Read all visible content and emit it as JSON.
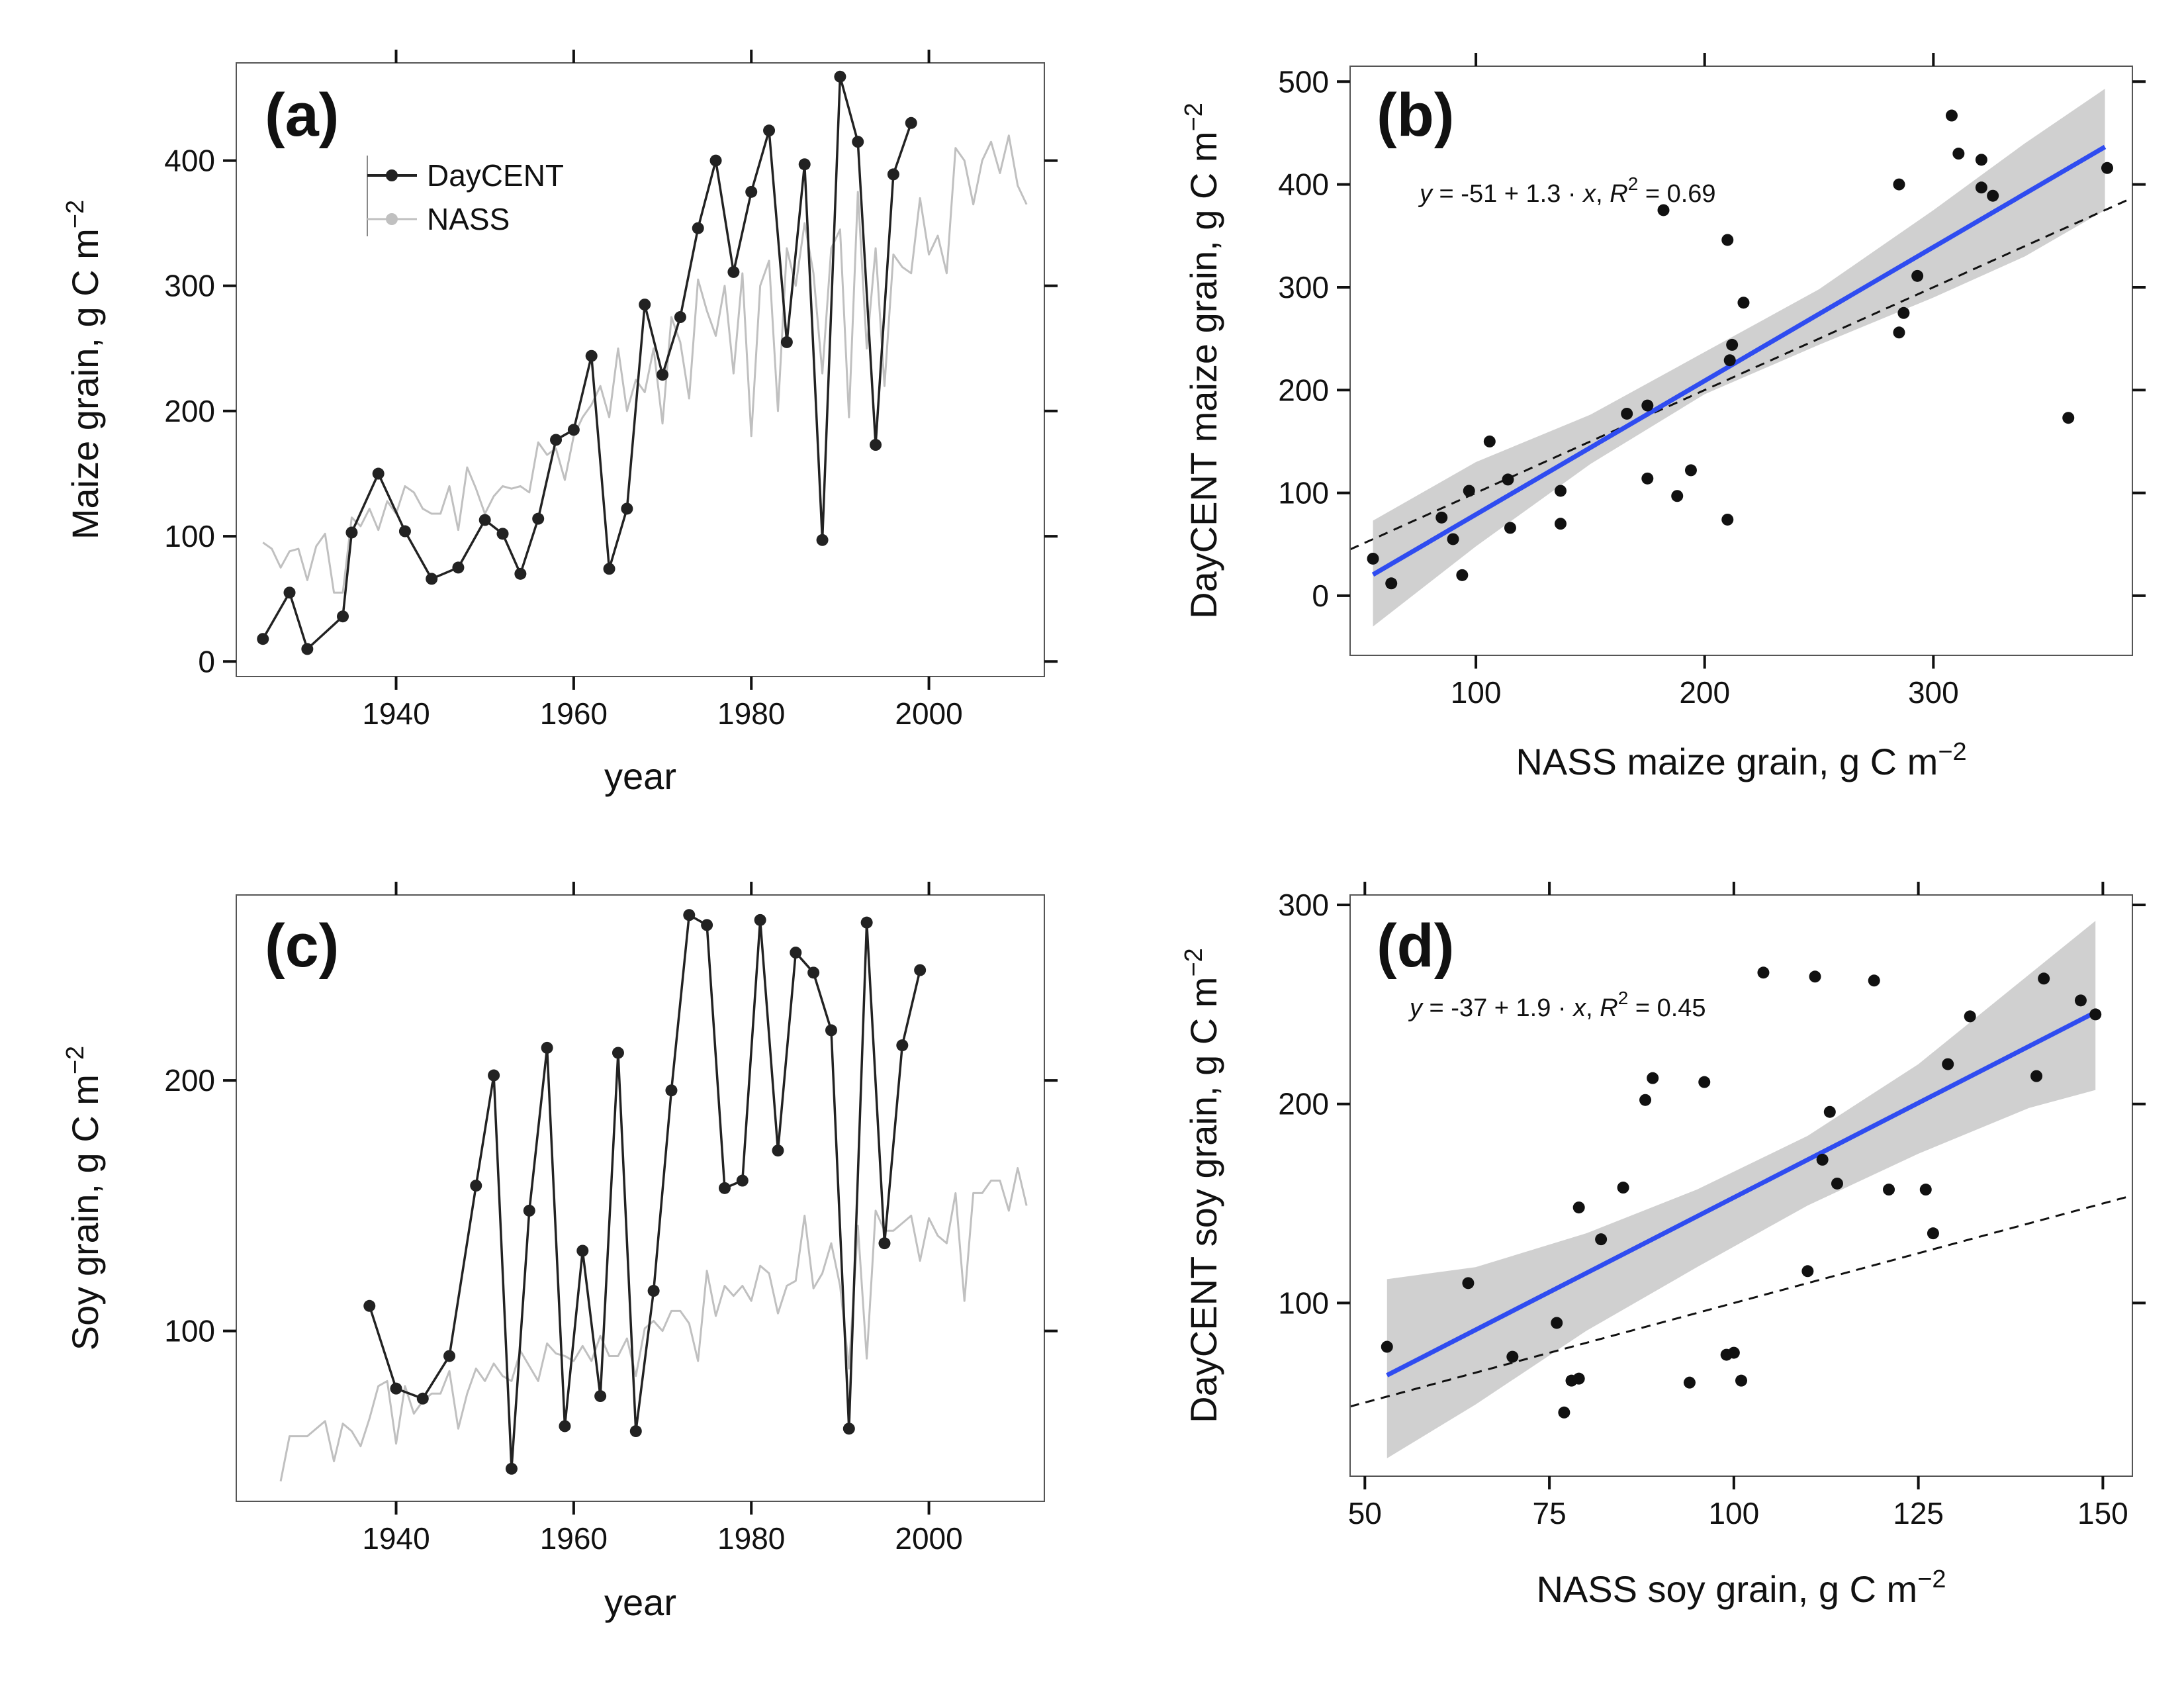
{
  "chart_data": [
    {
      "id": "a",
      "type": "line",
      "panel_label": "(a)",
      "xlabel": "year",
      "ylabel": "Maize grain, g C m",
      "ylabel_sup": "−2",
      "xlim": [
        1922,
        2013
      ],
      "ylim": [
        -12,
        478
      ],
      "xticks": [
        1940,
        1960,
        1980,
        2000
      ],
      "yticks": [
        0,
        100,
        200,
        300,
        400
      ],
      "legend": {
        "position": "top-left",
        "entries": [
          "DayCENT",
          "NASS"
        ]
      },
      "series": [
        {
          "name": "DayCENT",
          "color": "#222222",
          "markers": true,
          "x": [
            1925,
            1928,
            1930,
            1934,
            1935,
            1938,
            1941,
            1944,
            1947,
            1950,
            1952,
            1954,
            1956,
            1958,
            1960,
            1962,
            1964,
            1966,
            1968,
            1970,
            1972,
            1974,
            1976,
            1978,
            1980,
            1982,
            1984,
            1986,
            1988,
            1990,
            1992,
            1994,
            1996,
            1998
          ],
          "y": [
            18,
            55,
            10,
            36,
            103,
            150,
            104,
            66,
            75,
            113,
            102,
            70,
            114,
            177,
            185,
            244,
            74,
            122,
            285,
            229,
            275,
            346,
            400,
            311,
            375,
            424,
            255,
            397,
            97,
            467,
            415,
            173,
            389,
            430
          ]
        },
        {
          "name": "NASS",
          "color": "#c0c0c0",
          "markers": false,
          "x": [
            1925,
            1926,
            1927,
            1928,
            1929,
            1930,
            1931,
            1932,
            1933,
            1934,
            1935,
            1936,
            1937,
            1938,
            1939,
            1940,
            1941,
            1942,
            1943,
            1944,
            1945,
            1946,
            1947,
            1948,
            1949,
            1950,
            1951,
            1952,
            1953,
            1954,
            1955,
            1956,
            1957,
            1958,
            1959,
            1960,
            1961,
            1962,
            1963,
            1964,
            1965,
            1966,
            1967,
            1968,
            1969,
            1970,
            1971,
            1972,
            1973,
            1974,
            1975,
            1976,
            1977,
            1978,
            1979,
            1980,
            1981,
            1982,
            1983,
            1984,
            1985,
            1986,
            1987,
            1988,
            1989,
            1990,
            1991,
            1992,
            1993,
            1994,
            1995,
            1996,
            1997,
            1998,
            1999,
            2000,
            2001,
            2002,
            2003,
            2004,
            2005,
            2006,
            2007,
            2008,
            2009,
            2010,
            2011
          ],
          "y": [
            95,
            90,
            75,
            88,
            90,
            65,
            92,
            102,
            55,
            55,
            115,
            108,
            122,
            105,
            128,
            118,
            140,
            135,
            122,
            118,
            118,
            140,
            105,
            155,
            138,
            118,
            132,
            140,
            138,
            140,
            135,
            175,
            165,
            170,
            145,
            180,
            195,
            205,
            220,
            195,
            250,
            200,
            225,
            215,
            250,
            190,
            275,
            255,
            210,
            305,
            280,
            260,
            300,
            230,
            310,
            180,
            300,
            320,
            200,
            330,
            300,
            350,
            310,
            230,
            330,
            345,
            195,
            375,
            250,
            330,
            220,
            325,
            315,
            310,
            370,
            325,
            340,
            310,
            410,
            400,
            365,
            400,
            415,
            390,
            420,
            380,
            365
          ]
        }
      ]
    },
    {
      "id": "b",
      "type": "scatter",
      "panel_label": "(b)",
      "xlabel": "NASS maize grain, g C m",
      "xlabel_sup": "−2",
      "ylabel": "DayCENT maize grain, g C m",
      "ylabel_sup": "−2",
      "xlim": [
        45,
        387
      ],
      "ylim": [
        -58,
        515
      ],
      "xticks": [
        100,
        200,
        300
      ],
      "yticks": [
        0,
        100,
        200,
        300,
        400,
        500
      ],
      "annotation": {
        "text_y": "y",
        "text_mid": " = -51 + 1.3 · ",
        "text_x": "x",
        "text_r": ",  R",
        "text_sup": "2",
        "text_val": " = 0.69"
      },
      "fit": {
        "intercept": -51,
        "slope": 1.3,
        "x_range": [
          55,
          375
        ],
        "color": "#2f4cf0"
      },
      "confidence_band": {
        "x": [
          55,
          100,
          150,
          200,
          250,
          300,
          340,
          375
        ],
        "lower": [
          -30,
          48,
          128,
          196,
          244,
          290,
          330,
          375
        ],
        "upper": [
          73,
          130,
          176,
          237,
          298,
          375,
          440,
          493
        ],
        "color": "#d0d0d0"
      },
      "reference_line": {
        "intercept": 0,
        "slope": 1,
        "style": "dashed"
      },
      "points": {
        "x": [
          55,
          63,
          85,
          90,
          94,
          97,
          106,
          114,
          115,
          137,
          137,
          166,
          175,
          175,
          182,
          188,
          194,
          210,
          210,
          211,
          212,
          217,
          285,
          285,
          287,
          293,
          308,
          311,
          321,
          321,
          326,
          359,
          376
        ],
        "y": [
          36,
          12,
          76,
          55,
          20,
          102,
          150,
          113,
          66,
          102,
          70,
          177,
          185,
          114,
          375,
          97,
          122,
          346,
          74,
          229,
          244,
          285,
          400,
          256,
          275,
          311,
          467,
          430,
          424,
          397,
          389,
          173,
          416
        ]
      }
    },
    {
      "id": "c",
      "type": "line",
      "panel_label": "(c)",
      "xlabel": "year",
      "ylabel": "Soy grain, g C m",
      "ylabel_sup": "−2",
      "xlim": [
        1922,
        2013
      ],
      "ylim": [
        32,
        274
      ],
      "xticks": [
        1940,
        1960,
        1980,
        2000
      ],
      "yticks": [
        100,
        200
      ],
      "series": [
        {
          "name": "DayCENT",
          "color": "#222222",
          "markers": true,
          "x": [
            1937,
            1940,
            1943,
            1946,
            1949,
            1951,
            1953,
            1955,
            1957,
            1959,
            1961,
            1963,
            1965,
            1967,
            1969,
            1971,
            1973,
            1975,
            1977,
            1979,
            1981,
            1983,
            1985,
            1987,
            1989,
            1991,
            1993,
            1995,
            1997,
            1999
          ],
          "y": [
            110,
            77,
            73,
            90,
            158,
            202,
            45,
            148,
            213,
            62,
            132,
            74,
            211,
            60,
            116,
            196,
            266,
            262,
            157,
            160,
            264,
            172,
            251,
            243,
            220,
            61,
            263,
            135,
            214,
            244
          ]
        },
        {
          "name": "NASS",
          "color": "#c0c0c0",
          "markers": false,
          "x": [
            1927,
            1928,
            1929,
            1930,
            1931,
            1932,
            1933,
            1934,
            1935,
            1936,
            1937,
            1938,
            1939,
            1940,
            1941,
            1942,
            1943,
            1944,
            1945,
            1946,
            1947,
            1948,
            1949,
            1950,
            1951,
            1952,
            1953,
            1954,
            1955,
            1956,
            1957,
            1958,
            1959,
            1960,
            1961,
            1962,
            1963,
            1964,
            1965,
            1966,
            1967,
            1968,
            1969,
            1970,
            1971,
            1972,
            1973,
            1974,
            1975,
            1976,
            1977,
            1978,
            1979,
            1980,
            1981,
            1982,
            1983,
            1984,
            1985,
            1986,
            1987,
            1988,
            1989,
            1990,
            1991,
            1992,
            1993,
            1994,
            1995,
            1996,
            1997,
            1998,
            1999,
            2000,
            2001,
            2002,
            2003,
            2004,
            2005,
            2006,
            2007,
            2008,
            2009,
            2010,
            2011
          ],
          "y": [
            40,
            58,
            58,
            58,
            61,
            64,
            48,
            63,
            60,
            54,
            65,
            78,
            80,
            55,
            78,
            67,
            72,
            75,
            75,
            84,
            61,
            75,
            85,
            80,
            87,
            82,
            80,
            92,
            86,
            80,
            95,
            91,
            90,
            88,
            94,
            88,
            98,
            90,
            90,
            97,
            82,
            101,
            104,
            100,
            108,
            108,
            103,
            88,
            124,
            106,
            118,
            114,
            118,
            112,
            126,
            123,
            107,
            118,
            120,
            146,
            117,
            123,
            135,
            118,
            85,
            142,
            89,
            148,
            140,
            140,
            143,
            146,
            128,
            145,
            138,
            135,
            155,
            112,
            155,
            155,
            160,
            160,
            148,
            165,
            150
          ]
        }
      ]
    },
    {
      "id": "d",
      "type": "scatter",
      "panel_label": "(d)",
      "xlabel": "NASS soy grain, g C m",
      "xlabel_sup": "−2",
      "ylabel": "DayCENT soy grain, g C m",
      "ylabel_sup": "−2",
      "xlim": [
        48,
        154
      ],
      "ylim": [
        13,
        305
      ],
      "xticks": [
        50,
        75,
        100,
        125,
        150
      ],
      "yticks": [
        100,
        200,
        300
      ],
      "annotation": {
        "text_y": "y",
        "text_mid": " = -37 + 1.9 · ",
        "text_x": "x",
        "text_r": ",  R",
        "text_sup": "2",
        "text_val": " = 0.45"
      },
      "fit": {
        "intercept": -37,
        "slope": 1.9,
        "x_range": [
          53,
          149
        ],
        "color": "#2f4cf0"
      },
      "confidence_band": {
        "x": [
          53,
          65,
          80,
          95,
          110,
          125,
          140,
          149
        ],
        "lower": [
          22,
          49,
          86,
          118,
          149,
          175,
          198,
          207
        ],
        "upper": [
          112,
          118,
          135,
          157,
          184,
          220,
          265,
          292
        ],
        "color": "#d0d0d0"
      },
      "reference_line": {
        "intercept": 0,
        "slope": 1,
        "style": "dashed"
      },
      "points": {
        "x": [
          53,
          64,
          70,
          76,
          77,
          78,
          79,
          79,
          82,
          85,
          88,
          89,
          94,
          96,
          99,
          100,
          101,
          104,
          110,
          111,
          112,
          113,
          114,
          119,
          121,
          126,
          127,
          129,
          132,
          141,
          142,
          147,
          149
        ],
        "y": [
          78,
          110,
          73,
          90,
          45,
          61,
          62,
          148,
          132,
          158,
          202,
          213,
          60,
          211,
          74,
          75,
          61,
          266,
          116,
          264,
          172,
          196,
          160,
          262,
          157,
          157,
          135,
          220,
          244,
          214,
          263,
          252,
          245
        ]
      }
    }
  ]
}
